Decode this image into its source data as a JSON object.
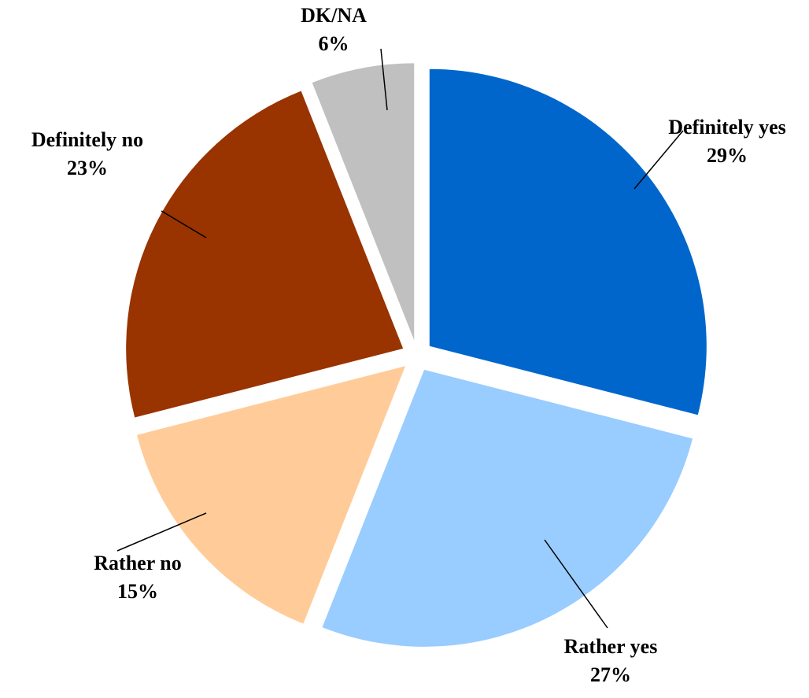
{
  "chart_data": {
    "type": "pie",
    "title": "",
    "categories": [
      "Definitely yes",
      "Rather yes",
      "Rather no",
      "Definitely no",
      "DK/NA"
    ],
    "values": [
      29,
      27,
      15,
      23,
      6
    ],
    "labels": [
      {
        "category": "Definitely yes",
        "percent": "29%"
      },
      {
        "category": "Rather yes",
        "percent": "27%"
      },
      {
        "category": "Rather no",
        "percent": "15%"
      },
      {
        "category": "Definitely no",
        "percent": "23%"
      },
      {
        "category": "DK/NA",
        "percent": "6%"
      }
    ],
    "colors": [
      "#0066CC",
      "#99CCFF",
      "#FFCC99",
      "#993300",
      "#C0C0C0"
    ],
    "exploded": true,
    "start_angle": "12 o'clock",
    "direction": "clockwise",
    "legend": "none"
  }
}
